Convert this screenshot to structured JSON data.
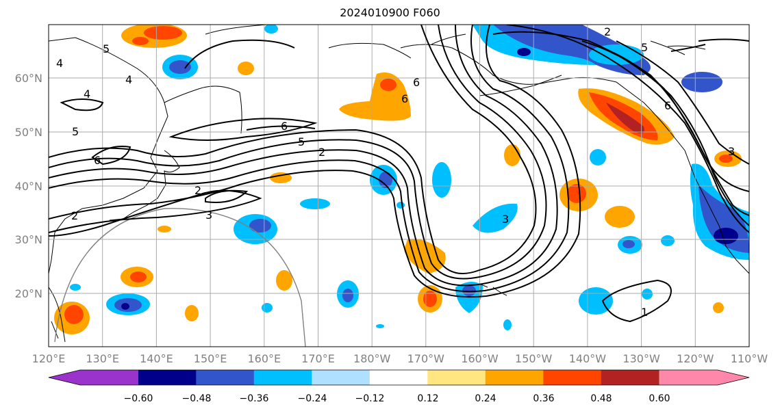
{
  "title": "2024010900 F060",
  "lon_labels": [
    "120°E",
    "130°E",
    "140°E",
    "150°E",
    "160°E",
    "170°E",
    "180°W",
    "170°W",
    "160°W",
    "150°W",
    "140°W",
    "130°W",
    "120°W",
    "110°W"
  ],
  "lat_labels": [
    "60°N",
    "50°N",
    "40°N",
    "30°N",
    "20°N"
  ],
  "colorbar": {
    "colors": [
      "#9933cc",
      "#00008b",
      "#3355cc",
      "#00bfff",
      "#b0e0ff",
      "#ffffff",
      "#ffe680",
      "#ffa500",
      "#ff4500",
      "#b22222",
      "#ff88aa"
    ],
    "ticks": [
      "−0.60",
      "−0.48",
      "−0.36",
      "−0.24",
      "−0.12",
      "0.12",
      "0.24",
      "0.36",
      "0.48",
      "0.60"
    ]
  },
  "contour_labels": [
    "5",
    "4",
    "4",
    "4",
    "5",
    "6",
    "6",
    "5",
    "2",
    "2",
    "2",
    "3",
    "6",
    "6",
    "5",
    "6",
    "3",
    "3",
    "1",
    "2"
  ]
}
